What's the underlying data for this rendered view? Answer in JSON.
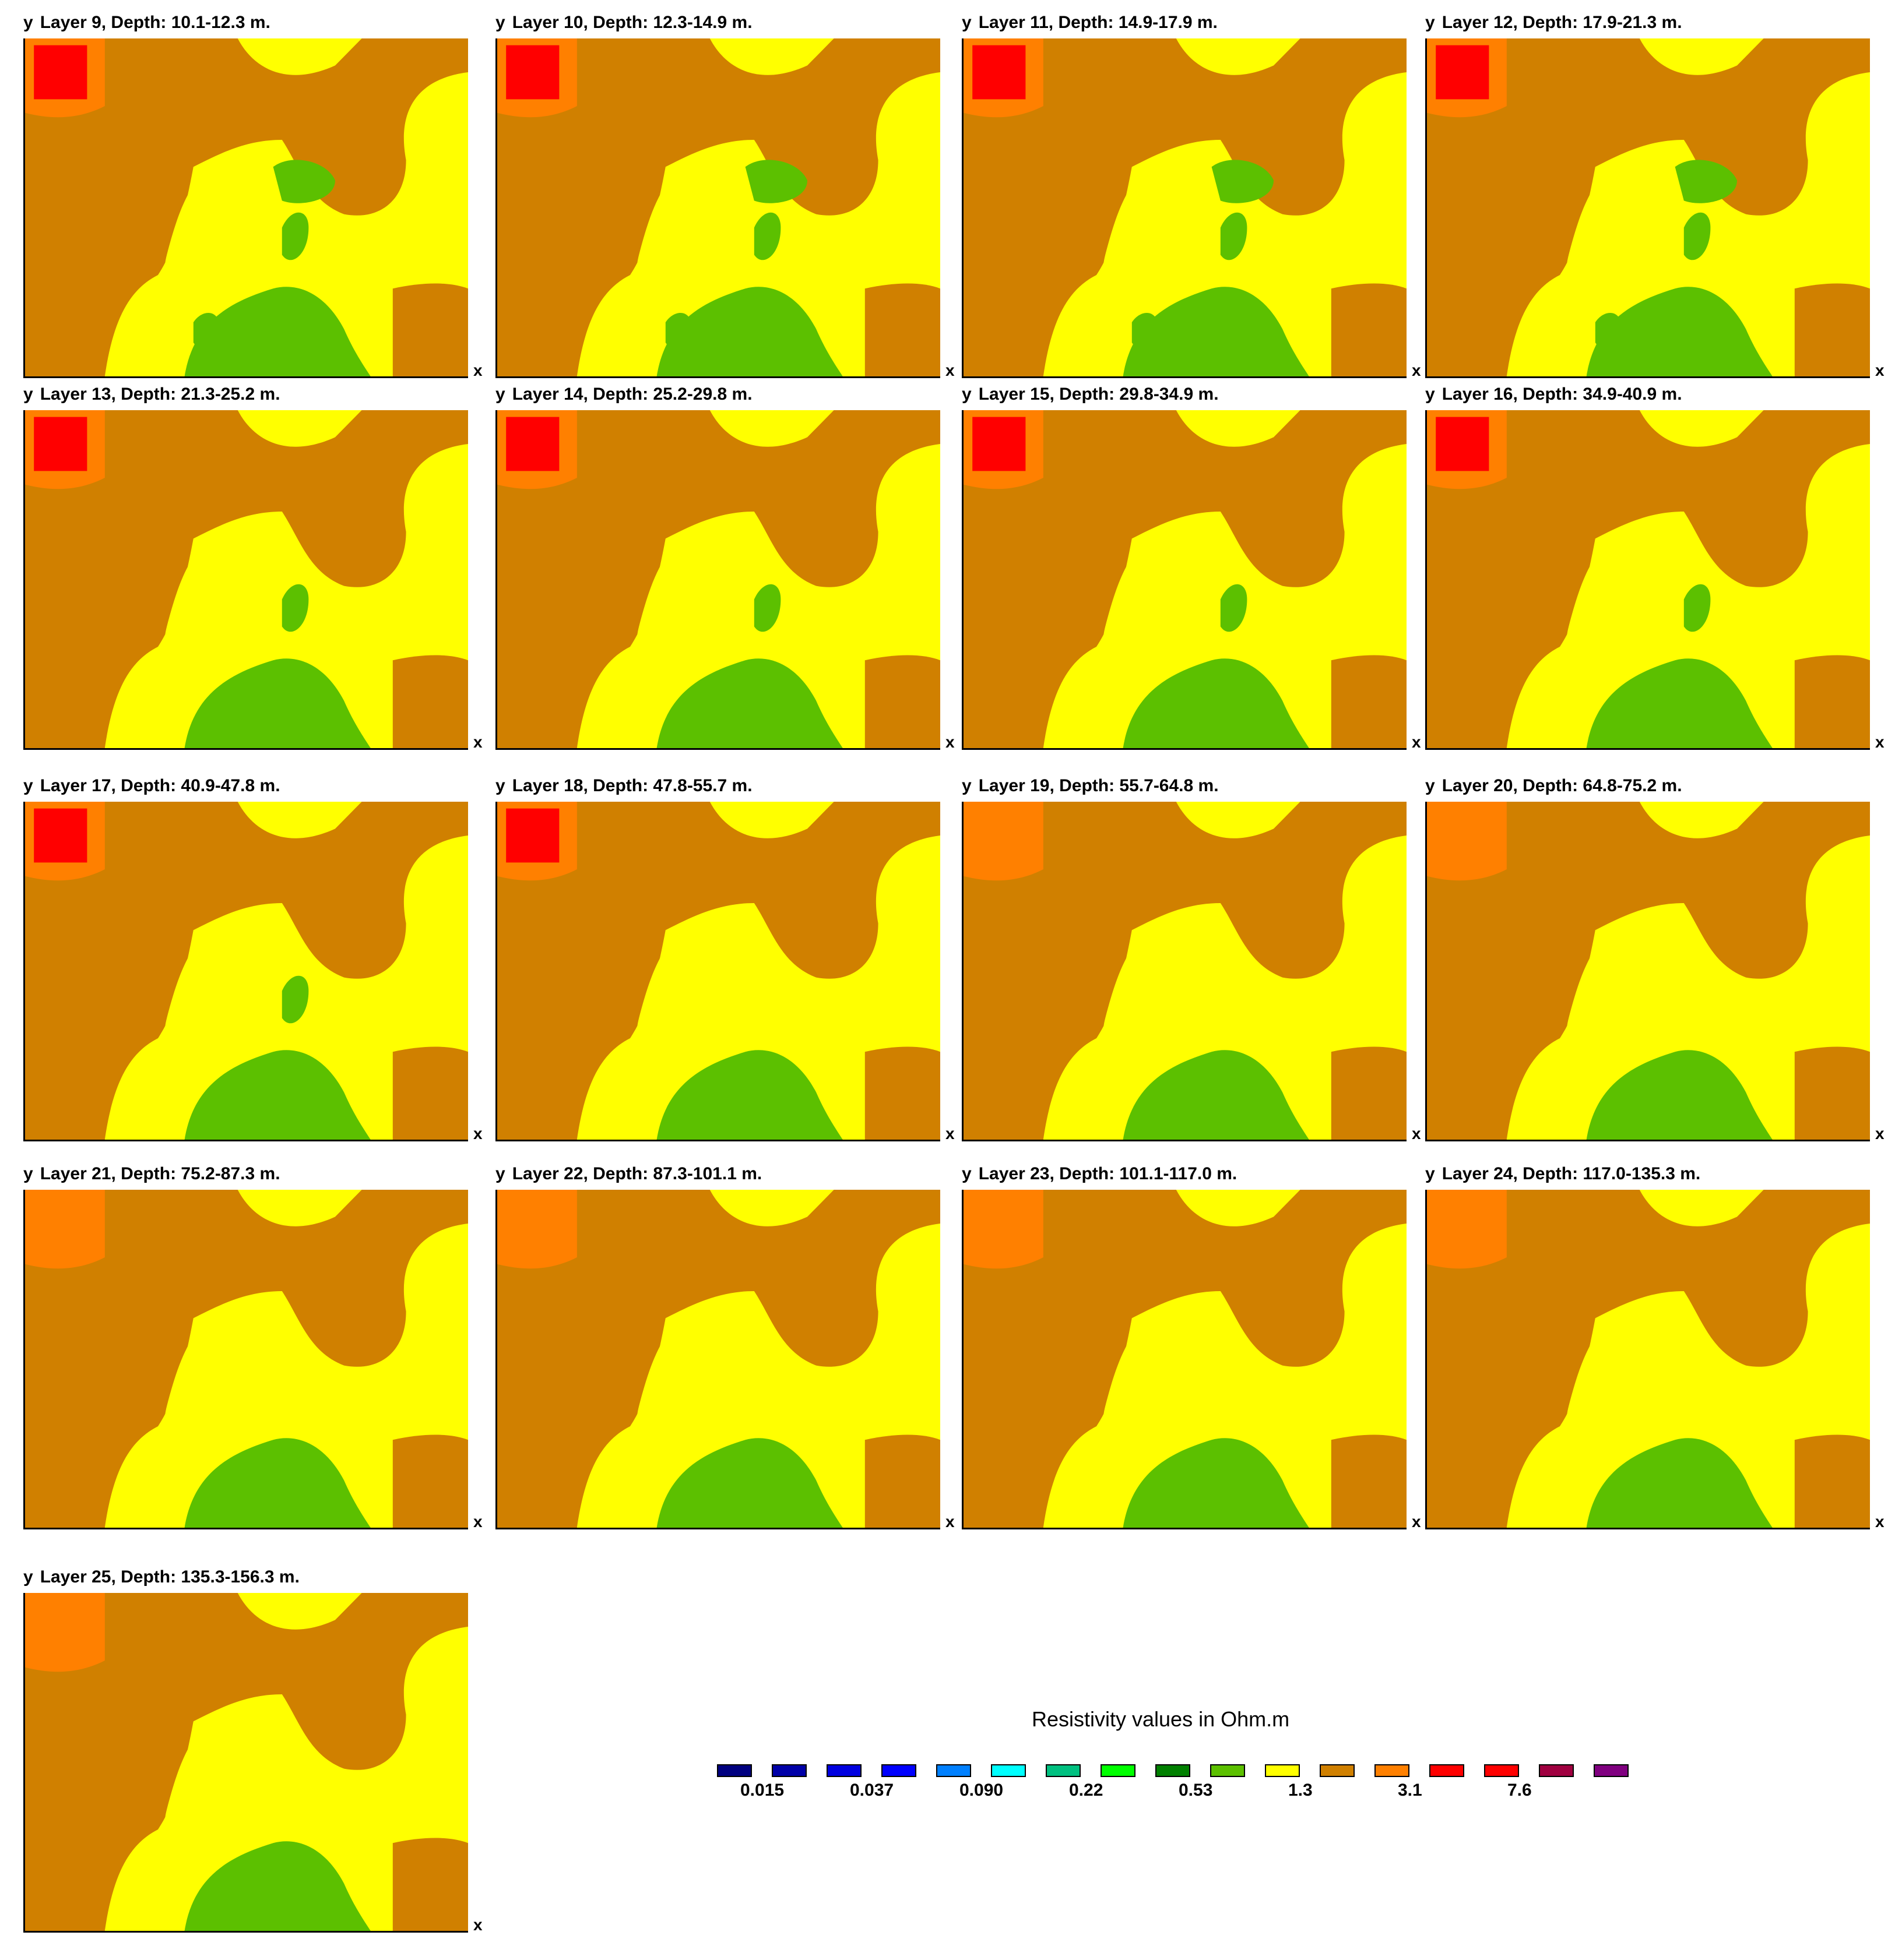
{
  "axis_labels": {
    "y": "y",
    "x": "x"
  },
  "colors": {
    "red": "#ff0000",
    "orange": "#ff8000",
    "brown": "#d08000",
    "yellow": "#ffff00",
    "green": "#5cc000"
  },
  "layers": [
    {
      "title": "Layer 9, Depth: 10.1-12.3 m."
    },
    {
      "title": "Layer 10, Depth: 12.3-14.9 m."
    },
    {
      "title": "Layer 11, Depth: 14.9-17.9 m."
    },
    {
      "title": "Layer 12, Depth: 17.9-21.3 m."
    },
    {
      "title": "Layer 13, Depth: 21.3-25.2 m."
    },
    {
      "title": "Layer 14, Depth: 25.2-29.8 m."
    },
    {
      "title": "Layer 15, Depth: 29.8-34.9 m."
    },
    {
      "title": "Layer 16, Depth: 34.9-40.9 m."
    },
    {
      "title": "Layer 17, Depth: 40.9-47.8 m."
    },
    {
      "title": "Layer 18, Depth: 47.8-55.7 m."
    },
    {
      "title": "Layer 19, Depth: 55.7-64.8 m."
    },
    {
      "title": "Layer 20, Depth: 64.8-75.2 m."
    },
    {
      "title": "Layer 21, Depth: 75.2-87.3 m."
    },
    {
      "title": "Layer 22, Depth: 87.3-101.1 m."
    },
    {
      "title": "Layer 23, Depth: 101.1-117.0 m."
    },
    {
      "title": "Layer 24, Depth: 117.0-135.3 m."
    },
    {
      "title": "Layer 25, Depth: 135.3-156.3 m."
    }
  ],
  "legend": {
    "title": "Resistivity values in Ohm.m",
    "swatch_colors": [
      "#000080",
      "#0000a8",
      "#0000e0",
      "#0000ff",
      "#0080ff",
      "#00ffff",
      "#00c080",
      "#00ff00",
      "#008000",
      "#5cc000",
      "#ffff00",
      "#d08000",
      "#ff8000",
      "#ff0000",
      "#ff0000",
      "#a00040",
      "#800080"
    ],
    "tick_labels": [
      "0.015",
      "0.037",
      "0.090",
      "0.22",
      "0.53",
      "1.3",
      "3.1",
      "7.6"
    ]
  }
}
